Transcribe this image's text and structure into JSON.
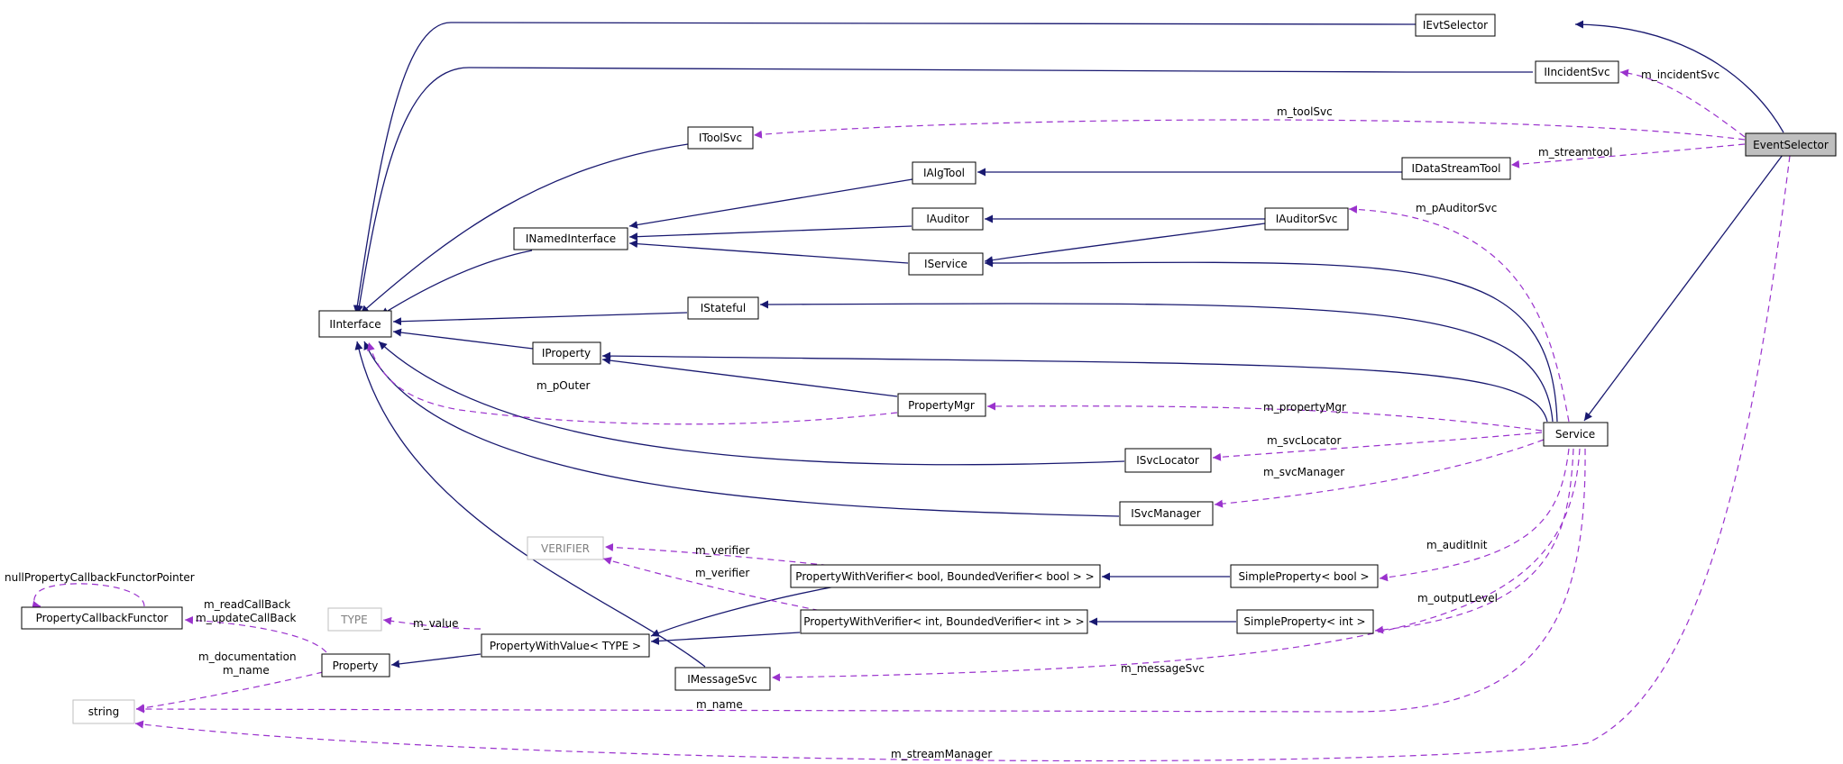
{
  "diagram": {
    "colors": {
      "inheritance": "#191970",
      "usage": "#9a32cd",
      "node_border": "#000000",
      "ghost_border": "#bfbfbf",
      "ghost_text": "#7f7f7f",
      "highlight_fill": "#bfbfbf"
    },
    "nodes": {
      "eventselector": "EventSelector",
      "ievtselector": "IEvtSelector",
      "iincidentsvc": "IIncidentSvc",
      "itoolsvc": "IToolSvc",
      "idatastreamtool": "IDataStreamTool",
      "ialgtool": "IAlgTool",
      "iauditor": "IAuditor",
      "iauditorsvc": "IAuditorSvc",
      "inamedinterface": "INamedInterface",
      "iservice": "IService",
      "iinterface": "IInterface",
      "istateful": "IStateful",
      "iproperty": "IProperty",
      "propertymgr": "PropertyMgr",
      "service": "Service",
      "isvclocator": "ISvcLocator",
      "isvcmanager": "ISvcManager",
      "verifier": "VERIFIER",
      "pwv_bool": "PropertyWithVerifier< bool, BoundedVerifier< bool > >",
      "simpleproperty_bool": "SimpleProperty< bool >",
      "propertycallbackfunctor": "PropertyCallbackFunctor",
      "type": "TYPE",
      "pwv_int": "PropertyWithVerifier< int, BoundedVerifier< int > >",
      "simpleproperty_int": "SimpleProperty< int >",
      "property": "Property",
      "propertywithvalue": "PropertyWithValue< TYPE >",
      "imessagesvc": "IMessageSvc",
      "string": "string"
    },
    "edge_labels": {
      "m_incidentsvc": "m_incidentSvc",
      "m_toolsvc": "m_toolSvc",
      "m_streamtool": "m_streamtool",
      "m_pauditorsvc": "m_pAuditorSvc",
      "m_pouter": "m_pOuter",
      "m_propertymgr": "m_propertyMgr",
      "m_svclocator": "m_svcLocator",
      "m_svcmanager": "m_svcManager",
      "m_verifier_1": "m_verifier",
      "m_verifier_2": "m_verifier",
      "m_auditinit": "m_auditInit",
      "m_outputlevel": "m_outputLevel",
      "nullpropertycallbackfunctorpointer": "nullPropertyCallbackFunctorPointer",
      "m_readcallback": "m_readCallBack",
      "m_updatecallback": "m_updateCallBack",
      "m_value": "m_value",
      "m_documentation": "m_documentation",
      "m_name_property": "m_name",
      "m_messagesvc": "m_messageSvc",
      "m_name_service": "m_name",
      "m_streammanager": "m_streamManager"
    }
  }
}
